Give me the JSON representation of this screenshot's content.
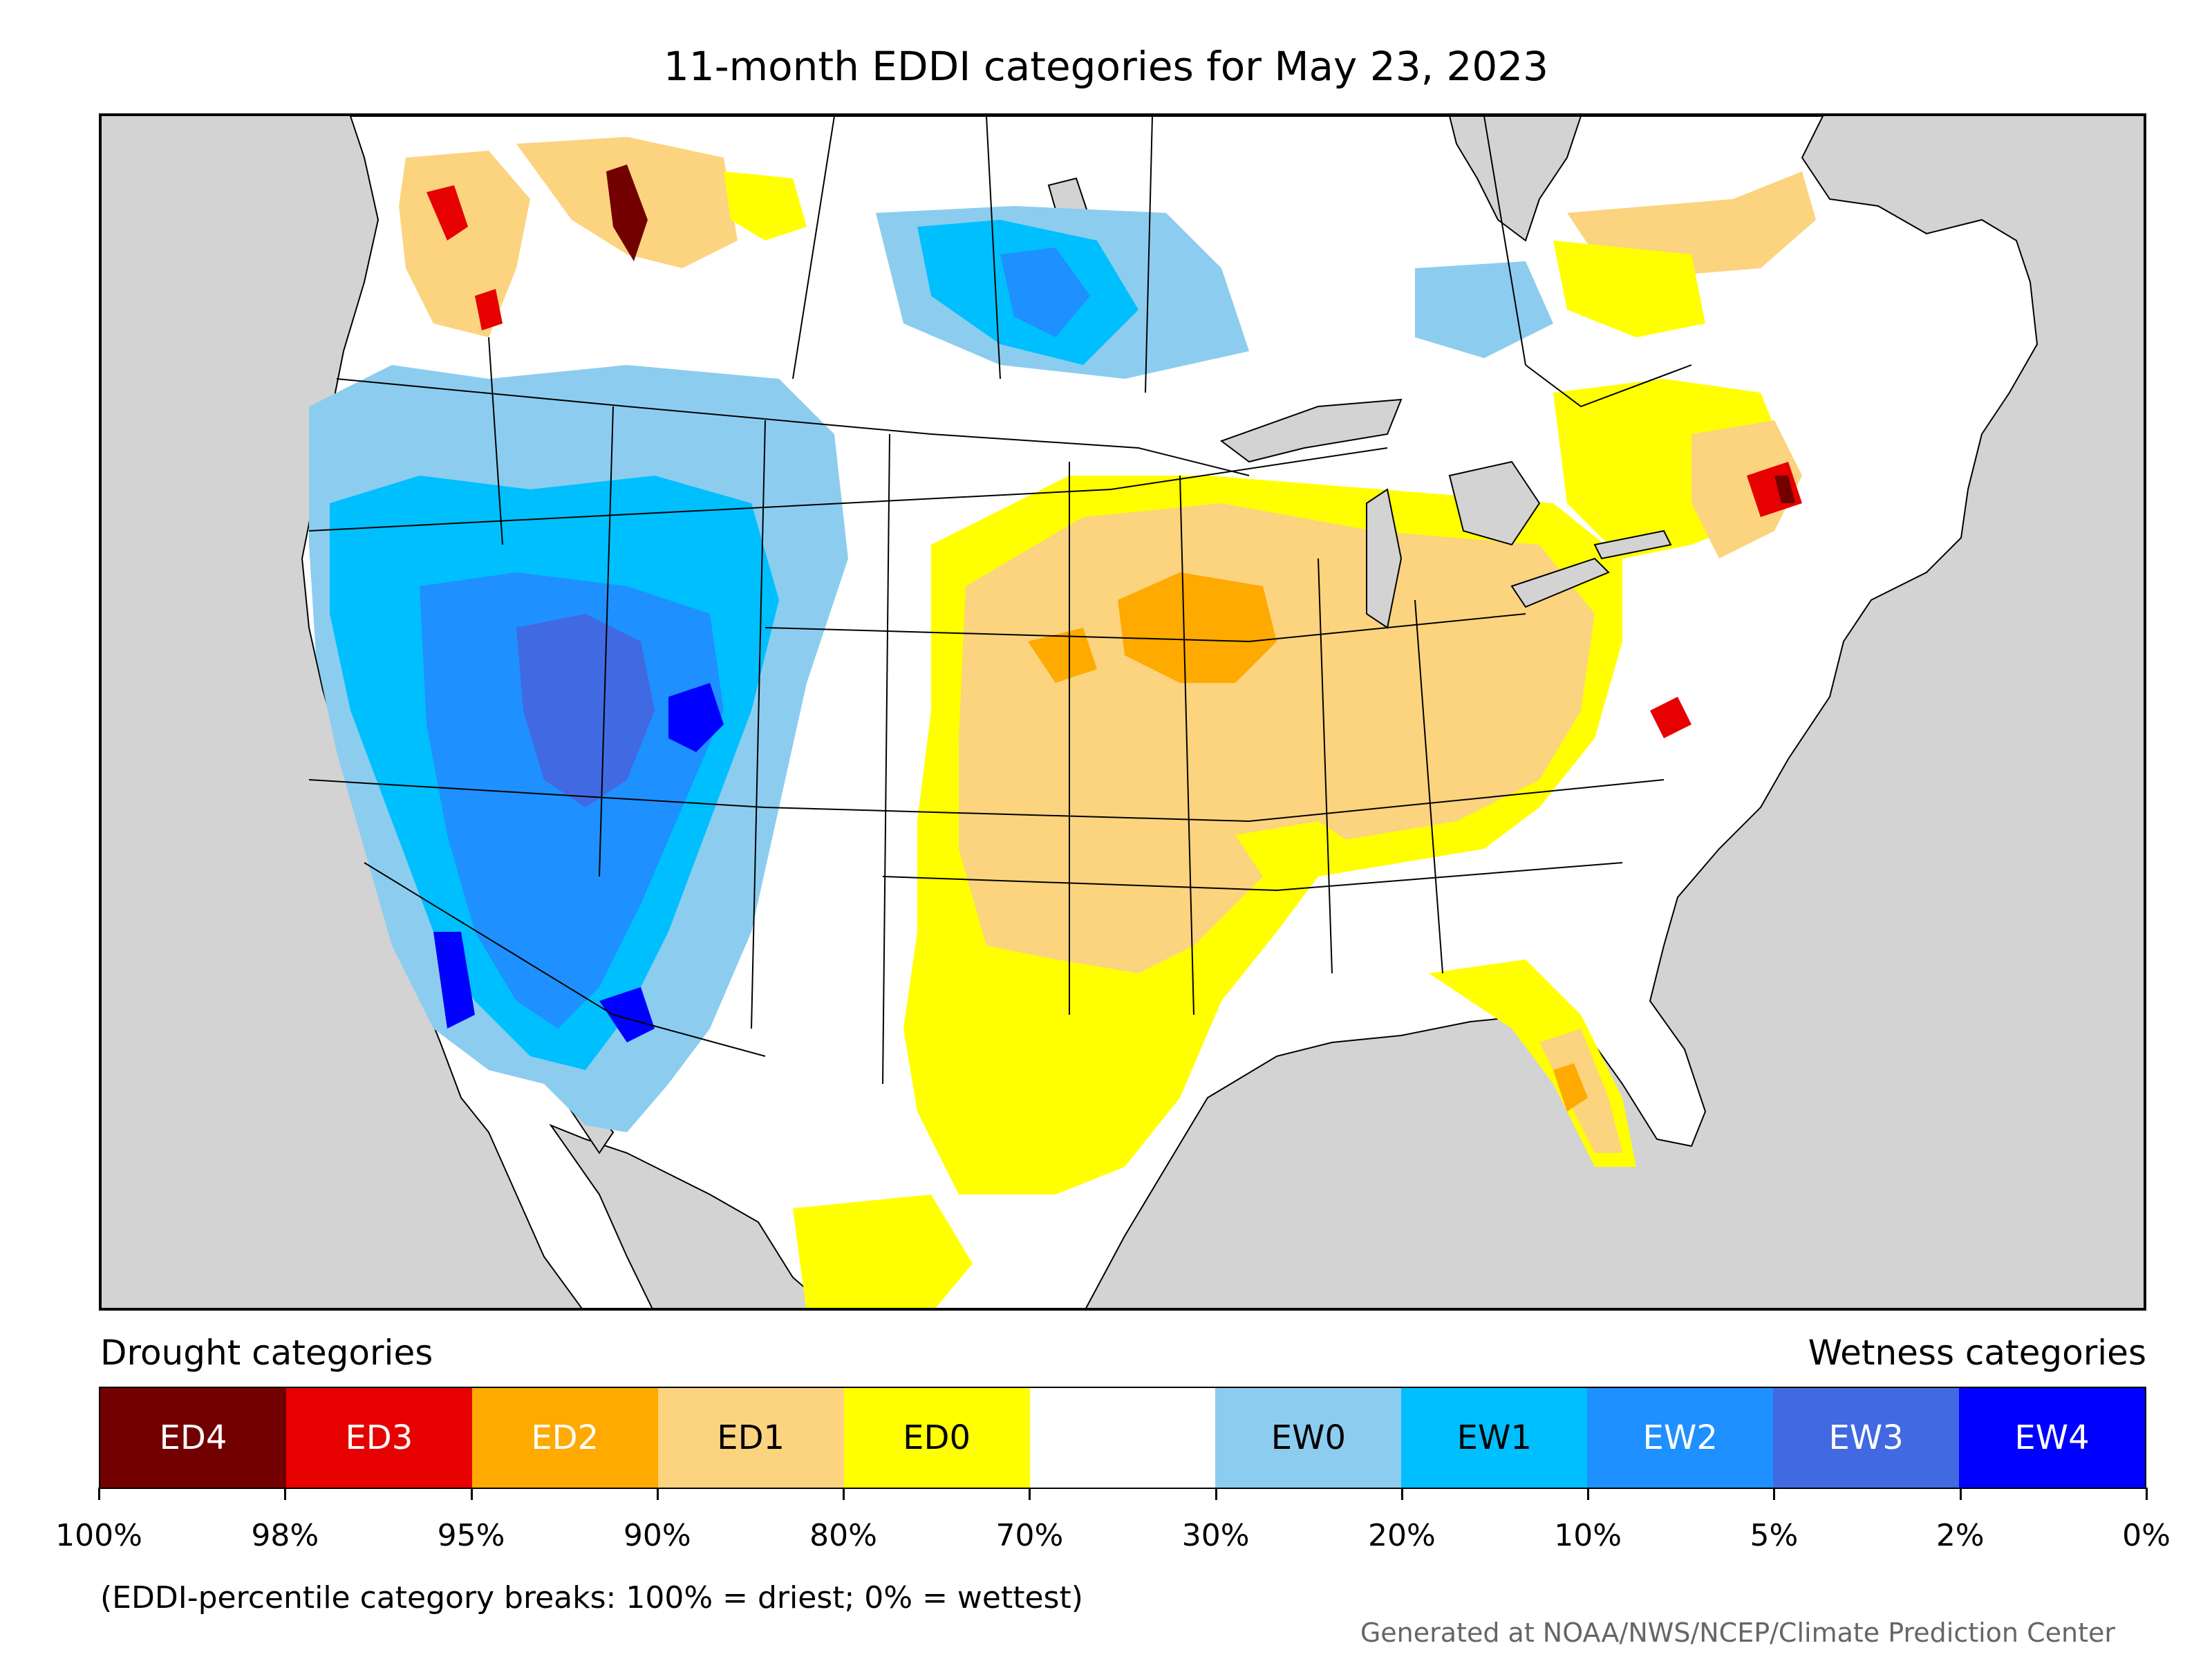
{
  "title": "11-month EDDI categories for May 23, 2023",
  "drought_label": "Drought categories",
  "wetness_label": "Wetness categories",
  "legend": [
    {
      "label": "ED4",
      "color": "#730000",
      "text_color": "#ffffff"
    },
    {
      "label": "ED3",
      "color": "#e60000",
      "text_color": "#ffffff"
    },
    {
      "label": "ED2",
      "color": "#ffaa00",
      "text_color": "#ffffff"
    },
    {
      "label": "ED1",
      "color": "#fcd37f",
      "text_color": "#000000"
    },
    {
      "label": "ED0",
      "color": "#ffff00",
      "text_color": "#000000"
    },
    {
      "label": "",
      "color": "#ffffff",
      "text_color": "#000000"
    },
    {
      "label": "EW0",
      "color": "#8ccdef",
      "text_color": "#000000"
    },
    {
      "label": "EW1",
      "color": "#00bfff",
      "text_color": "#000000"
    },
    {
      "label": "EW2",
      "color": "#1e90ff",
      "text_color": "#ffffff"
    },
    {
      "label": "EW3",
      "color": "#4169e1",
      "text_color": "#ffffff"
    },
    {
      "label": "EW4",
      "color": "#0000ff",
      "text_color": "#ffffff"
    }
  ],
  "tick_labels": [
    "100%",
    "98%",
    "95%",
    "90%",
    "80%",
    "70%",
    "30%",
    "20%",
    "10%",
    "5%",
    "2%",
    "0%"
  ],
  "note": "(EDDI-percentile category breaks: 100% = driest; 0% = wettest)",
  "credit": "Generated at NOAA/NWS/NCEP/Climate Prediction Center",
  "colors": {
    "ocean": "#d3d3d3",
    "land": "#ffffff",
    "lakes": "#d3d3d3"
  }
}
